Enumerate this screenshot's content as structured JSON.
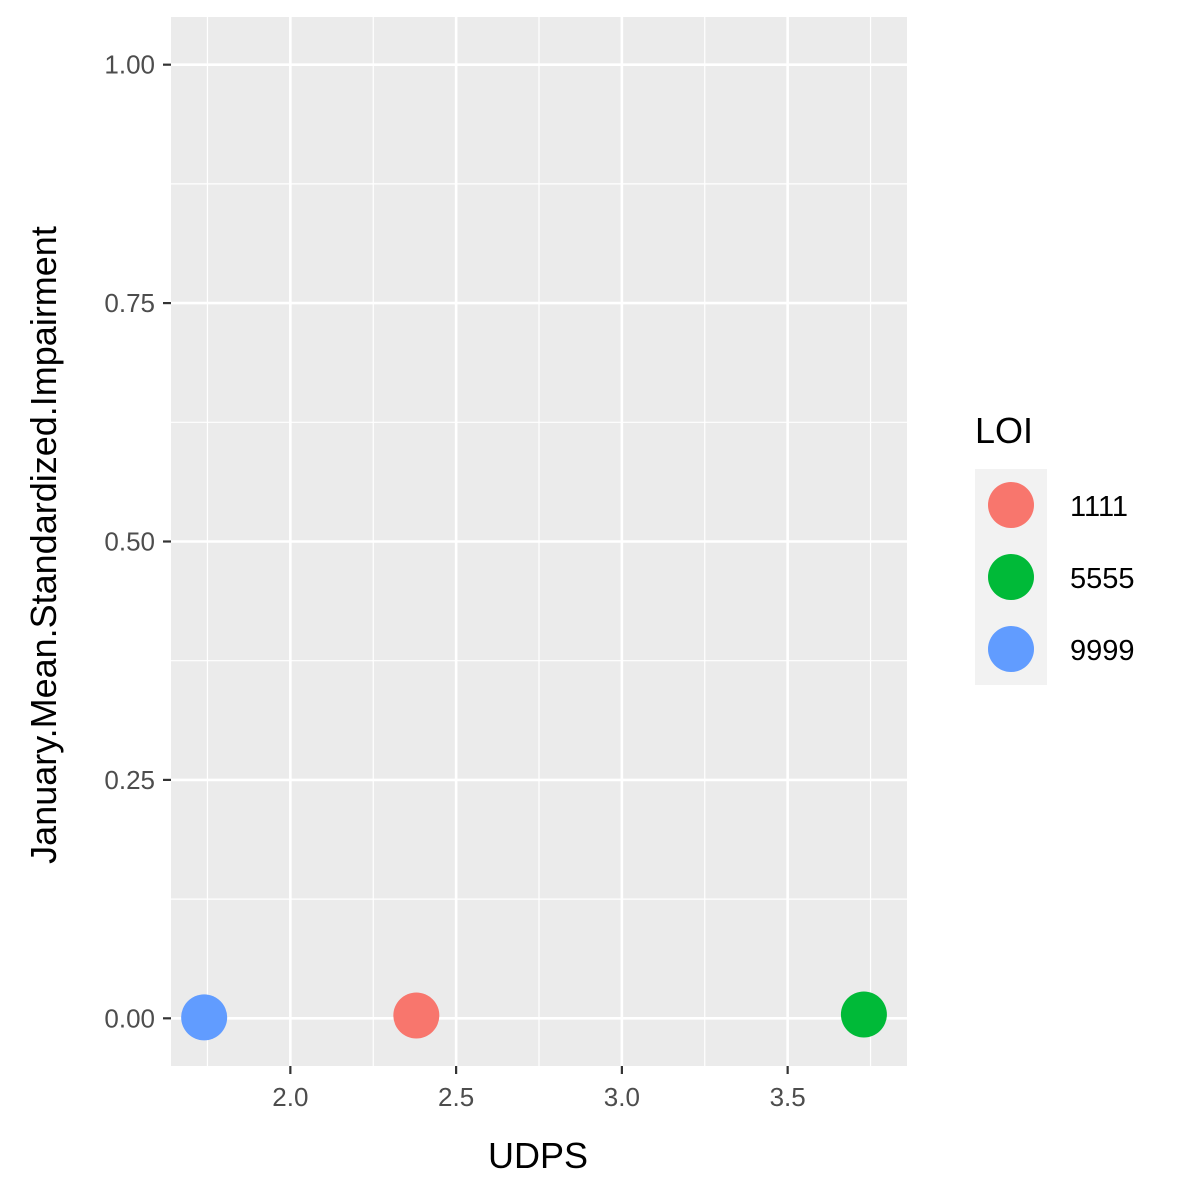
{
  "chart_data": {
    "type": "scatter",
    "xlabel": "UDPS",
    "ylabel": "January.Mean.Standardized.Impairment",
    "xlim": [
      1.64,
      3.86
    ],
    "ylim": [
      -0.05,
      1.05
    ],
    "x_ticks": [
      2.0,
      2.5,
      3.0,
      3.5
    ],
    "x_tick_labels": [
      "2.0",
      "2.5",
      "3.0",
      "3.5"
    ],
    "y_ticks": [
      0.0,
      0.25,
      0.5,
      0.75,
      1.0
    ],
    "y_tick_labels": [
      "0.00",
      "0.25",
      "0.50",
      "0.75",
      "1.00"
    ],
    "grid": true,
    "panel_background": "#ebebeb",
    "legend": {
      "title": "LOI",
      "placement": "right",
      "entries": [
        {
          "label": "1111",
          "color": "#f8766d"
        },
        {
          "label": "5555",
          "color": "#00ba38"
        },
        {
          "label": "9999",
          "color": "#619cff"
        }
      ]
    },
    "series": [
      {
        "name": "1111",
        "color": "#f8766d",
        "points": [
          {
            "x": 2.38,
            "y": 0.003
          }
        ]
      },
      {
        "name": "5555",
        "color": "#00ba38",
        "points": [
          {
            "x": 3.73,
            "y": 0.004
          }
        ]
      },
      {
        "name": "9999",
        "color": "#619cff",
        "points": [
          {
            "x": 1.74,
            "y": 0.001
          }
        ]
      }
    ]
  }
}
